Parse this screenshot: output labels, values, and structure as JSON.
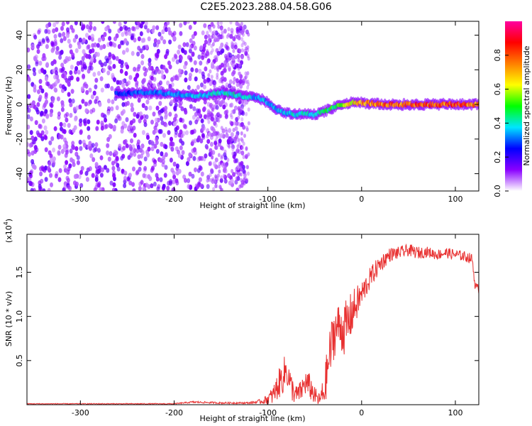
{
  "title": "C2E5.2023.288.04.58.G06",
  "chart_data": [
    {
      "type": "heatmap",
      "xlabel": "Height of straight line (km)",
      "ylabel": "Frequency (Hz)",
      "xlim": [
        -357,
        125
      ],
      "ylim": [
        -50,
        48
      ],
      "xticks": [
        -300,
        -200,
        -100,
        0,
        100
      ],
      "yticks": [
        -40,
        -20,
        0,
        20,
        40
      ],
      "colorbar": {
        "label": "Normalized spectral amplitude",
        "range": [
          0,
          1
        ],
        "ticks": [
          "0.0",
          "0.2",
          "0.4",
          "0.6",
          "0.8"
        ],
        "colors": [
          "#ffffff",
          "#8a00ff",
          "#0000ff",
          "#00e5ff",
          "#00ff00",
          "#ffff00",
          "#ff7f00",
          "#ff0000",
          "#ff00a0"
        ]
      },
      "ridge": {
        "x": [
          -260,
          -230,
          -200,
          -170,
          -150,
          -130,
          -110,
          -100,
          -90,
          -80,
          -70,
          -60,
          -50,
          -40,
          -30,
          -20,
          -10,
          0,
          20,
          60,
          100,
          125
        ],
        "frequency": [
          6,
          7,
          6,
          5,
          7,
          5,
          4,
          1,
          -3,
          -5,
          -6,
          -5,
          -6,
          -4,
          -2,
          0,
          1,
          1,
          0,
          0,
          0,
          0
        ],
        "amplitude": [
          0.3,
          0.35,
          0.4,
          0.42,
          0.45,
          0.45,
          0.4,
          0.4,
          0.4,
          0.42,
          0.45,
          0.45,
          0.45,
          0.5,
          0.55,
          0.65,
          0.75,
          0.8,
          0.85,
          0.9,
          0.9,
          0.85
        ]
      },
      "grid": false
    },
    {
      "type": "line",
      "xlabel": "Height of straight line (km)",
      "ylabel": "SNR (10 * v/v)",
      "yscale_note": "(x10",
      "yscale_exp": "4",
      "yscale_close": ")",
      "xlim": [
        -357,
        125
      ],
      "ylim": [
        0,
        1.93
      ],
      "xticks": [
        -300,
        -200,
        -100,
        0,
        100
      ],
      "yticks": [
        "0.5",
        "1.0",
        "1.5"
      ],
      "ytick_values": [
        0.5,
        1.0,
        1.5
      ],
      "series": [
        {
          "color": "#e83030",
          "x": [
            -357,
            -300,
            -250,
            -200,
            -180,
            -150,
            -120,
            -105,
            -95,
            -85,
            -80,
            -75,
            -70,
            -65,
            -60,
            -55,
            -50,
            -45,
            -40,
            -35,
            -30,
            -25,
            -20,
            -15,
            -10,
            -5,
            0,
            10,
            20,
            30,
            40,
            50,
            60,
            70,
            80,
            90,
            100,
            110,
            118,
            121,
            125
          ],
          "values": [
            0.01,
            0.01,
            0.01,
            0.01,
            0.03,
            0.02,
            0.02,
            0.04,
            0.1,
            0.3,
            0.4,
            0.2,
            0.1,
            0.15,
            0.25,
            0.2,
            0.1,
            0.05,
            0.15,
            0.5,
            0.8,
            0.9,
            0.85,
            0.9,
            1.05,
            1.15,
            1.25,
            1.45,
            1.6,
            1.7,
            1.72,
            1.75,
            1.72,
            1.73,
            1.7,
            1.72,
            1.7,
            1.68,
            1.65,
            1.35,
            1.3
          ],
          "noise": [
            0.005,
            0.005,
            0.005,
            0.006,
            0.01,
            0.01,
            0.01,
            0.03,
            0.1,
            0.2,
            0.2,
            0.15,
            0.12,
            0.12,
            0.15,
            0.15,
            0.1,
            0.08,
            0.2,
            0.3,
            0.3,
            0.25,
            0.3,
            0.3,
            0.25,
            0.2,
            0.15,
            0.12,
            0.1,
            0.08,
            0.07,
            0.07,
            0.07,
            0.06,
            0.06,
            0.06,
            0.06,
            0.06,
            0.06,
            0.05,
            0.05
          ]
        }
      ],
      "grid": false
    }
  ]
}
